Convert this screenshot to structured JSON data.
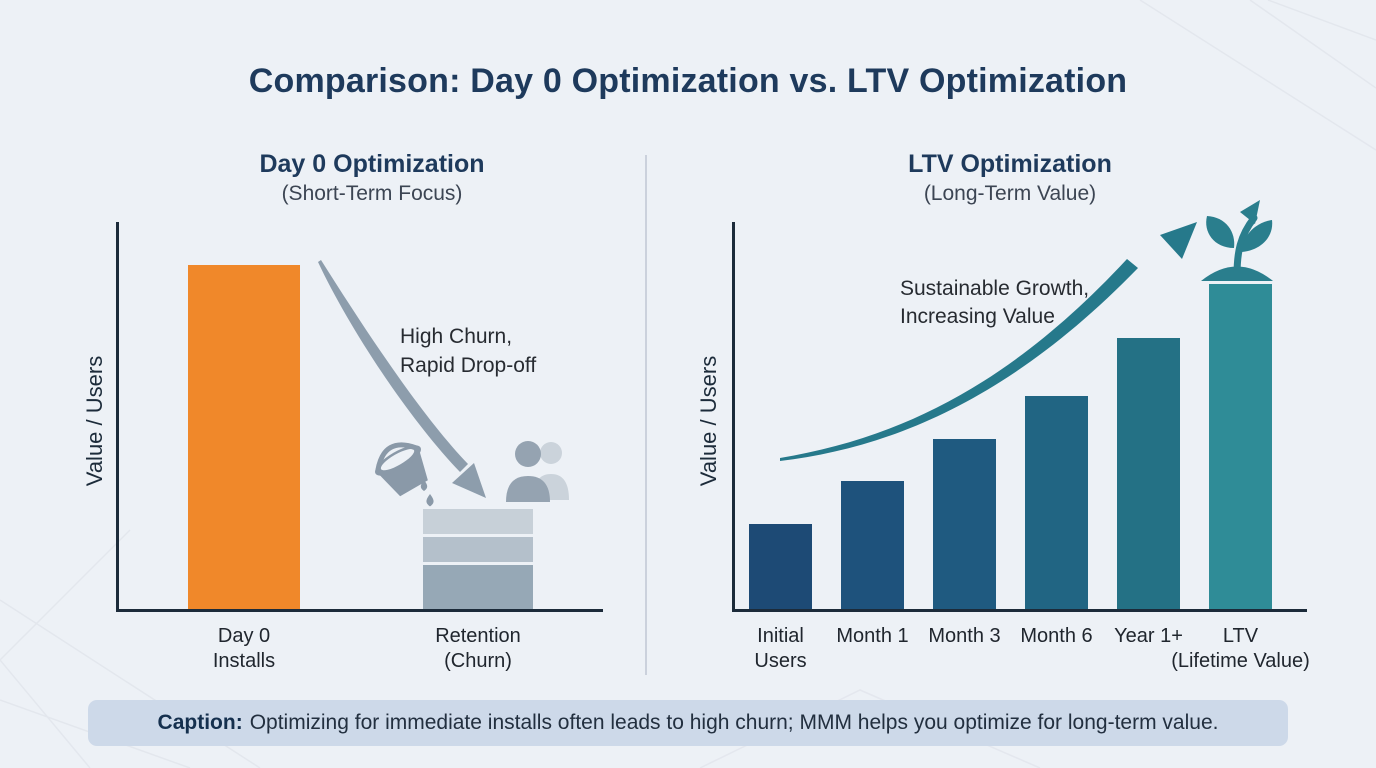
{
  "title": "Comparison: Day 0 Optimization vs. LTV Optimization",
  "left_panel": {
    "title": "Day 0 Optimization",
    "subtitle": "(Short-Term Focus)",
    "y_axis_label": "Value / Users",
    "annotation_line1": "High Churn,",
    "annotation_line2": "Rapid Drop-off",
    "x_labels": [
      [
        "Day 0",
        "Installs"
      ],
      [
        "Retention",
        "(Churn)"
      ]
    ],
    "icons": [
      "decline-arrow",
      "leaky-bucket-icon",
      "users-icon"
    ]
  },
  "right_panel": {
    "title": "LTV Optimization",
    "subtitle": "(Long-Term Value)",
    "y_axis_label": "Value / Users",
    "annotation_line1": "Sustainable Growth,",
    "annotation_line2": "Increasing Value",
    "x_labels": [
      [
        "Initial",
        "Users"
      ],
      [
        "Month 1"
      ],
      [
        "Month 3"
      ],
      [
        "Month 6"
      ],
      [
        "Year 1+"
      ],
      [
        "LTV",
        "(Lifetime Value)"
      ]
    ],
    "icons": [
      "growth-arrow",
      "sprout-icon"
    ]
  },
  "caption": {
    "label": "Caption:",
    "text": "Optimizing for immediate installs often leads to high churn; MMM helps you optimize for long-term value."
  },
  "colors": {
    "background": "#EDF1F6",
    "title_navy": "#1E3A5C",
    "axis": "#1C2B3A",
    "day0_orange": "#F0882A",
    "churn_gray": "#8D9DAC",
    "growth_teal": "#26798B",
    "caption_bg": "#CDD9E9",
    "divider": "#CBD1DC"
  },
  "chart_data": [
    {
      "type": "bar",
      "panel": "left",
      "title": "Day 0 Optimization (Short-Term Focus)",
      "ylabel": "Value / Users",
      "xlabel": "",
      "ylim": [
        0,
        100
      ],
      "grid": false,
      "categories": [
        "Day 0 Installs",
        "Retention (Churn)"
      ],
      "values": [
        89,
        26
      ],
      "bar_colors": [
        "#F0882A",
        "#9DAEBC"
      ],
      "annotations": [
        "High Churn, Rapid Drop-off"
      ],
      "retention_segments_top_to_bottom": [
        {
          "value_pct": 6.5,
          "color": "#C7D0D8"
        },
        {
          "value_pct": 6.5,
          "color": "#B4C0CB"
        },
        {
          "value_pct": 11.4,
          "color": "#96A8B6"
        }
      ]
    },
    {
      "type": "bar",
      "panel": "right",
      "title": "LTV Optimization (Long-Term Value)",
      "ylabel": "Value / Users",
      "xlabel": "",
      "ylim": [
        0,
        100
      ],
      "grid": false,
      "categories": [
        "Initial Users",
        "Month 1",
        "Month 3",
        "Month 6",
        "Year 1+",
        "LTV (Lifetime Value)"
      ],
      "values": [
        22,
        33,
        44,
        55,
        70,
        84
      ],
      "bar_colors": [
        "#1D4A75",
        "#1E527C",
        "#1F5A80",
        "#216583",
        "#247185",
        "#2F8C97"
      ],
      "annotations": [
        "Sustainable Growth, Increasing Value"
      ]
    }
  ]
}
